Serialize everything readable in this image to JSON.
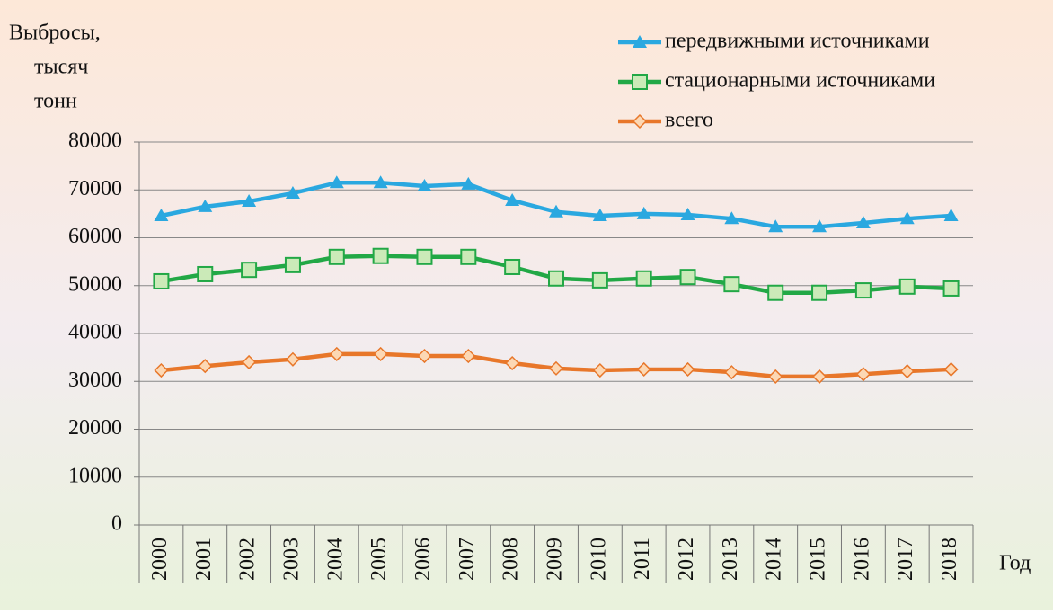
{
  "chart_data": {
    "type": "line",
    "ylabel": [
      "Выбросы,",
      "тысяч",
      "тонн"
    ],
    "xlabel": "Год",
    "categories": [
      "2000",
      "2001",
      "2002",
      "2003",
      "2004",
      "2005",
      "2006",
      "2007",
      "2008",
      "2009",
      "2010",
      "2011",
      "2012",
      "2013",
      "2014",
      "2015",
      "2016",
      "2017",
      "2018"
    ],
    "series": [
      {
        "name": "передвижными источниками",
        "color": "#2aa8e0",
        "marker": "triangle",
        "values": [
          64600,
          66500,
          67600,
          69300,
          71500,
          71500,
          70800,
          71200,
          67800,
          65400,
          64600,
          65000,
          64800,
          64000,
          62300,
          62300,
          63100,
          64000,
          64600
        ]
      },
      {
        "name": "стационарными источниками",
        "color": "#22a846",
        "marker": "square",
        "values": [
          50900,
          52400,
          53300,
          54300,
          56000,
          56200,
          56000,
          56000,
          53900,
          51500,
          51100,
          51500,
          51800,
          50300,
          48500,
          48500,
          49000,
          49800,
          49400
        ]
      },
      {
        "name": "всего",
        "color": "#e8772a",
        "marker": "diamond",
        "values": [
          32300,
          33200,
          34000,
          34600,
          35700,
          35700,
          35300,
          35300,
          33800,
          32700,
          32300,
          32500,
          32500,
          31900,
          31000,
          31000,
          31500,
          32100,
          32500
        ]
      }
    ],
    "ylim": [
      0,
      80000
    ],
    "yticks": [
      0,
      10000,
      20000,
      30000,
      40000,
      50000,
      60000,
      70000,
      80000
    ],
    "grid": true,
    "legend": "upper right"
  }
}
